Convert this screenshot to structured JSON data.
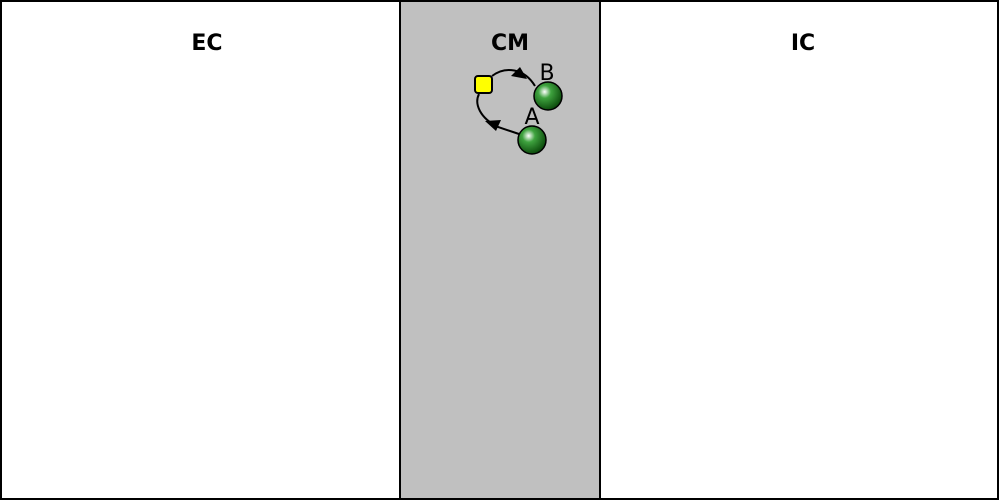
{
  "compartments": {
    "ec": {
      "label": "EC",
      "fill": "#ffffff"
    },
    "cm": {
      "label": "CM",
      "fill": "#c0c0c0"
    },
    "ic": {
      "label": "IC",
      "fill": "#ffffff"
    }
  },
  "species": {
    "a": {
      "label": "A",
      "color": "#1e7a1e"
    },
    "b": {
      "label": "B",
      "color": "#1e7a1e"
    }
  },
  "reaction": {
    "color": "#ffff00"
  },
  "colors": {
    "stroke": "#000000"
  }
}
